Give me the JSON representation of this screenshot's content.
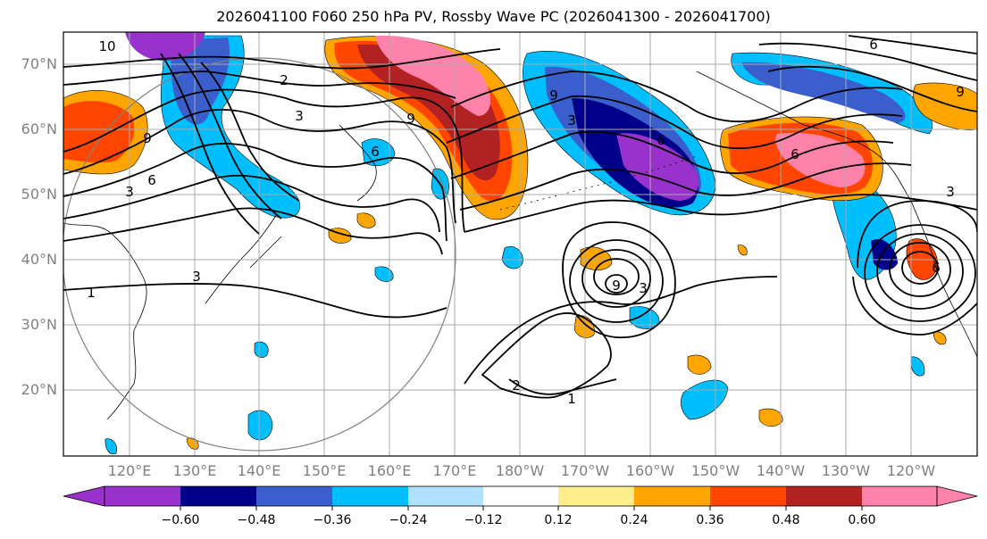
{
  "title": "2026041100 F060 250 hPa PV, Rossby Wave PC (2026041300 - 2026041700)",
  "lat_labels": [
    "70°N",
    "60°N",
    "50°N",
    "40°N",
    "30°N",
    "20°N"
  ],
  "lon_labels": [
    "120°E",
    "130°E",
    "140°E",
    "150°E",
    "160°E",
    "170°E",
    "180°W",
    "170°W",
    "160°W",
    "150°W",
    "140°W",
    "130°W",
    "120°W"
  ],
  "contour_labels": [
    "10",
    "2",
    "3",
    "6",
    "9",
    "3",
    "6",
    "9",
    "1",
    "3",
    "9",
    "3",
    "6",
    "6",
    "1",
    "2",
    "9",
    "3",
    "3",
    "6",
    "6",
    "9"
  ],
  "colorbar": {
    "ticks": [
      "−0.60",
      "−0.48",
      "−0.36",
      "−0.24",
      "−0.12",
      "0.12",
      "0.24",
      "0.36",
      "0.48",
      "0.60"
    ],
    "colors": [
      "#9932cc",
      "#00008b",
      "#3a5fcd",
      "#00bfff",
      "#b0e2ff",
      "#ffffff",
      "#ffec8b",
      "#ffa500",
      "#ff4500",
      "#b22222",
      "#ff82ab"
    ]
  }
}
